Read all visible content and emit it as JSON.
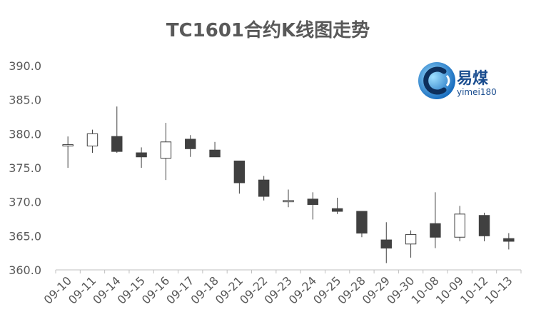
{
  "chart_data": {
    "type": "candlestick",
    "title": "TC1601合约K线图走势",
    "ylim": [
      360,
      390
    ],
    "yticks": [
      "360.0",
      "365.0",
      "370.0",
      "375.0",
      "380.0",
      "385.0",
      "390.0"
    ],
    "categories": [
      "09-10",
      "09-11",
      "09-14",
      "09-15",
      "09-16",
      "09-17",
      "09-18",
      "09-21",
      "09-22",
      "09-23",
      "09-24",
      "09-25",
      "09-28",
      "09-29",
      "09-30",
      "10-08",
      "10-09",
      "10-12",
      "10-13"
    ],
    "ohlc": [
      {
        "open": 378.2,
        "high": 379.6,
        "low": 375.0,
        "close": 378.4
      },
      {
        "open": 378.2,
        "high": 380.6,
        "low": 377.2,
        "close": 380.0
      },
      {
        "open": 379.6,
        "high": 384.0,
        "low": 377.2,
        "close": 377.4
      },
      {
        "open": 377.2,
        "high": 378.0,
        "low": 375.0,
        "close": 376.6
      },
      {
        "open": 376.4,
        "high": 381.6,
        "low": 373.2,
        "close": 378.8
      },
      {
        "open": 379.2,
        "high": 379.8,
        "low": 376.6,
        "close": 377.8
      },
      {
        "open": 377.6,
        "high": 378.8,
        "low": 376.6,
        "close": 376.6
      },
      {
        "open": 376.0,
        "high": 376.0,
        "low": 371.2,
        "close": 372.8
      },
      {
        "open": 373.2,
        "high": 373.8,
        "low": 370.2,
        "close": 370.8
      },
      {
        "open": 370.0,
        "high": 371.8,
        "low": 369.2,
        "close": 370.2
      },
      {
        "open": 370.4,
        "high": 371.4,
        "low": 367.4,
        "close": 369.6
      },
      {
        "open": 369.0,
        "high": 370.6,
        "low": 368.2,
        "close": 368.6
      },
      {
        "open": 368.6,
        "high": 368.6,
        "low": 364.8,
        "close": 365.4
      },
      {
        "open": 364.4,
        "high": 367.0,
        "low": 361.0,
        "close": 363.2
      },
      {
        "open": 363.8,
        "high": 365.8,
        "low": 361.8,
        "close": 365.2
      },
      {
        "open": 366.8,
        "high": 371.4,
        "low": 363.2,
        "close": 364.8
      },
      {
        "open": 364.8,
        "high": 369.4,
        "low": 364.2,
        "close": 368.2
      },
      {
        "open": 368.0,
        "high": 368.4,
        "low": 364.2,
        "close": 365.0
      },
      {
        "open": 364.6,
        "high": 365.4,
        "low": 363.0,
        "close": 364.2
      }
    ],
    "up_color": "#ffffff",
    "down_color": "#404040",
    "line_color": "#404040",
    "grid": false
  },
  "watermark": {
    "brand_cn": "易煤",
    "brand_en": "yimei180",
    "icon": "yimei-logo-icon"
  }
}
